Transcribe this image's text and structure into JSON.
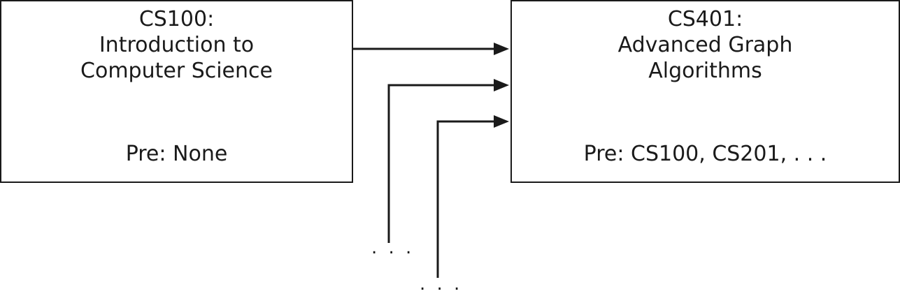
{
  "nodes": {
    "cs100": {
      "title_lines": [
        "CS100:",
        "Introduction to",
        "Computer Science"
      ],
      "prereq": "Pre: None"
    },
    "cs401": {
      "title_lines": [
        "CS401:",
        "Advanced Graph",
        "Algorithms"
      ],
      "prereq": "Pre: CS100, CS201, . . ."
    }
  },
  "ellipses": [
    ". . .",
    ". . ."
  ],
  "colors": {
    "line": "#1a1a1a",
    "box_fill": "#ffffff"
  }
}
